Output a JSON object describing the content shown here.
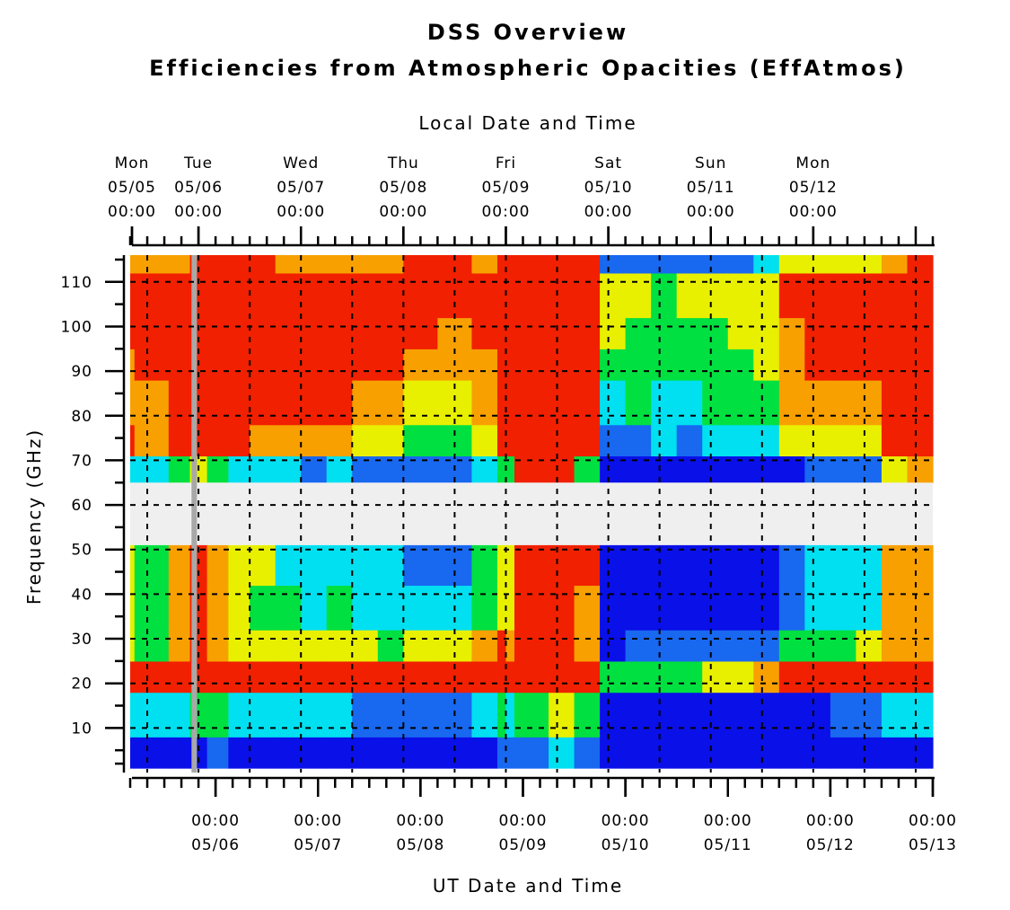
{
  "chart_data": {
    "type": "heatmap",
    "title": "DSS Overview",
    "subtitle": "Efficiencies from Atmospheric Opacities (EffAtmos)",
    "xlabel_top": "Local Date and Time",
    "xlabel_bottom": "UT Date and Time",
    "ylabel": "Frequency (GHz)",
    "ylim": [
      0,
      116
    ],
    "yticks": [
      10,
      20,
      30,
      40,
      50,
      60,
      70,
      80,
      90,
      100,
      110
    ],
    "local_time_ticks": [
      {
        "day": "Mon",
        "date": "05/05",
        "time": "00:00",
        "ut_hours": -8
      },
      {
        "day": "Tue",
        "date": "05/06",
        "time": "00:00",
        "ut_hours": 16
      },
      {
        "day": "Wed",
        "date": "05/07",
        "time": "00:00",
        "ut_hours": 40
      },
      {
        "day": "Thu",
        "date": "05/08",
        "time": "00:00",
        "ut_hours": 64
      },
      {
        "day": "Fri",
        "date": "05/09",
        "time": "00:00",
        "ut_hours": 88
      },
      {
        "day": "Sat",
        "date": "05/10",
        "time": "00:00",
        "ut_hours": 112
      },
      {
        "day": "Sun",
        "date": "05/11",
        "time": "00:00",
        "ut_hours": 136
      },
      {
        "day": "Mon",
        "date": "05/12",
        "time": "00:00",
        "ut_hours": 160
      }
    ],
    "ut_ticks": [
      {
        "time": "00:00",
        "date": "05/06",
        "ut_hours": 20
      },
      {
        "time": "00:00",
        "date": "05/07",
        "ut_hours": 44
      },
      {
        "time": "00:00",
        "date": "05/08",
        "ut_hours": 68
      },
      {
        "time": "00:00",
        "date": "05/09",
        "ut_hours": 92
      },
      {
        "time": "00:00",
        "date": "05/10",
        "ut_hours": 116
      },
      {
        "time": "00:00",
        "date": "05/11",
        "ut_hours": 140
      },
      {
        "time": "00:00",
        "date": "05/12",
        "ut_hours": 164
      },
      {
        "time": "00:00",
        "date": "05/13",
        "ut_hours": 188
      }
    ],
    "x_range_ut_hours": [
      0,
      188
    ],
    "excluded_band_ghz": [
      51,
      65
    ],
    "current_time_ut_hours": 15,
    "colormap": [
      "#0a10e8",
      "#1868f0",
      "#00e0f0",
      "#00e040",
      "#e8f000",
      "#f8a000",
      "#f02000"
    ],
    "efficiency_segments": [
      {
        "start": 0,
        "end": 1,
        "eff": [
          0.1,
          0.3,
          0.95,
          0.6,
          0.6,
          0.65,
          0.4,
          0.9,
          0.8,
          0.85,
          0.9,
          0.9,
          0.85
        ]
      },
      {
        "start": 1,
        "end": 9,
        "eff": [
          0.1,
          0.3,
          0.95,
          0.55,
          0.5,
          0.5,
          0.3,
          0.85,
          0.85,
          0.9,
          0.9,
          0.9,
          0.85
        ]
      },
      {
        "start": 9,
        "end": 14,
        "eff": [
          0.1,
          0.4,
          0.95,
          0.8,
          0.85,
          0.85,
          0.5,
          0.95,
          0.95,
          0.95,
          0.95,
          0.95,
          0.85
        ]
      },
      {
        "start": 14,
        "end": 18,
        "eff": [
          0.12,
          0.55,
          0.95,
          0.95,
          0.95,
          0.95,
          0.7,
          0.95,
          0.95,
          0.95,
          0.95,
          0.95,
          0.9
        ]
      },
      {
        "start": 18,
        "end": 20,
        "eff": [
          0.15,
          0.45,
          0.95,
          0.85,
          0.8,
          0.8,
          0.55,
          0.95,
          0.95,
          0.95,
          0.95,
          0.95,
          0.95
        ]
      },
      {
        "start": 20,
        "end": 23,
        "eff": [
          0.25,
          0.5,
          0.95,
          0.8,
          0.75,
          0.75,
          0.5,
          0.95,
          0.95,
          0.95,
          0.95,
          0.95,
          0.95
        ]
      },
      {
        "start": 23,
        "end": 28,
        "eff": [
          0.1,
          0.35,
          0.95,
          0.7,
          0.65,
          0.7,
          0.4,
          0.9,
          0.95,
          0.95,
          0.95,
          0.95,
          0.9
        ]
      },
      {
        "start": 28,
        "end": 34,
        "eff": [
          0.1,
          0.3,
          0.95,
          0.65,
          0.55,
          0.6,
          0.35,
          0.85,
          0.95,
          0.95,
          0.95,
          0.95,
          0.9
        ]
      },
      {
        "start": 34,
        "end": 40,
        "eff": [
          0.1,
          0.3,
          0.95,
          0.7,
          0.45,
          0.4,
          0.3,
          0.8,
          0.9,
          0.92,
          0.93,
          0.95,
          0.85
        ]
      },
      {
        "start": 40,
        "end": 46,
        "eff": [
          0.1,
          0.3,
          0.95,
          0.65,
          0.4,
          0.35,
          0.25,
          0.75,
          0.88,
          0.9,
          0.9,
          0.95,
          0.75
        ]
      },
      {
        "start": 46,
        "end": 52,
        "eff": [
          0.1,
          0.3,
          0.95,
          0.65,
          0.45,
          0.4,
          0.3,
          0.8,
          0.9,
          0.92,
          0.93,
          0.95,
          0.8
        ]
      },
      {
        "start": 52,
        "end": 58,
        "eff": [
          0.1,
          0.28,
          0.95,
          0.6,
          0.4,
          0.35,
          0.25,
          0.7,
          0.85,
          0.9,
          0.9,
          0.95,
          0.8
        ]
      },
      {
        "start": 58,
        "end": 64,
        "eff": [
          0.1,
          0.25,
          0.95,
          0.55,
          0.35,
          0.3,
          0.2,
          0.65,
          0.8,
          0.88,
          0.9,
          0.95,
          0.85
        ]
      },
      {
        "start": 64,
        "end": 72,
        "eff": [
          0.1,
          0.25,
          0.95,
          0.6,
          0.3,
          0.25,
          0.2,
          0.5,
          0.65,
          0.8,
          0.9,
          0.95,
          0.9
        ]
      },
      {
        "start": 72,
        "end": 80,
        "eff": [
          0.1,
          0.25,
          0.95,
          0.65,
          0.3,
          0.25,
          0.25,
          0.5,
          0.65,
          0.8,
          0.85,
          0.95,
          0.9
        ]
      },
      {
        "start": 80,
        "end": 86,
        "eff": [
          0.1,
          0.35,
          0.95,
          0.75,
          0.5,
          0.45,
          0.35,
          0.6,
          0.75,
          0.85,
          0.9,
          0.95,
          0.85
        ]
      },
      {
        "start": 86,
        "end": 88,
        "eff": [
          0.15,
          0.45,
          0.95,
          0.9,
          0.7,
          0.65,
          0.5,
          0.9,
          0.95,
          0.95,
          0.95,
          0.95,
          0.9
        ]
      },
      {
        "start": 88,
        "end": 90,
        "eff": [
          0.15,
          0.4,
          0.95,
          0.85,
          0.6,
          0.6,
          0.45,
          0.95,
          0.95,
          0.95,
          0.95,
          0.95,
          0.95
        ]
      },
      {
        "start": 90,
        "end": 98,
        "eff": [
          0.25,
          0.5,
          0.95,
          0.95,
          0.95,
          0.95,
          0.95,
          0.95,
          0.95,
          0.95,
          0.95,
          0.95,
          0.95
        ]
      },
      {
        "start": 98,
        "end": 104,
        "eff": [
          0.35,
          0.65,
          0.95,
          0.95,
          0.95,
          0.95,
          0.95,
          0.95,
          0.95,
          0.95,
          0.95,
          0.95,
          0.95
        ]
      },
      {
        "start": 104,
        "end": 110,
        "eff": [
          0.2,
          0.5,
          0.95,
          0.8,
          0.85,
          0.9,
          0.5,
          0.95,
          0.95,
          0.95,
          0.95,
          0.95,
          0.9
        ]
      },
      {
        "start": 110,
        "end": 116,
        "eff": [
          0.05,
          0.1,
          0.5,
          0.1,
          0.05,
          0.05,
          0.05,
          0.15,
          0.4,
          0.55,
          0.65,
          0.7,
          0.25
        ]
      },
      {
        "start": 116,
        "end": 122,
        "eff": [
          0.05,
          0.1,
          0.55,
          0.15,
          0.05,
          0.05,
          0.05,
          0.25,
          0.45,
          0.5,
          0.55,
          0.6,
          0.25
        ]
      },
      {
        "start": 122,
        "end": 128,
        "eff": [
          0.05,
          0.1,
          0.45,
          0.2,
          0.05,
          0.05,
          0.05,
          0.3,
          0.35,
          0.45,
          0.5,
          0.55,
          0.2
        ]
      },
      {
        "start": 128,
        "end": 134,
        "eff": [
          0.05,
          0.1,
          0.55,
          0.15,
          0.05,
          0.05,
          0.05,
          0.25,
          0.4,
          0.5,
          0.55,
          0.6,
          0.25
        ]
      },
      {
        "start": 134,
        "end": 140,
        "eff": [
          0.05,
          0.1,
          0.6,
          0.2,
          0.05,
          0.05,
          0.05,
          0.3,
          0.45,
          0.5,
          0.55,
          0.6,
          0.25
        ]
      },
      {
        "start": 140,
        "end": 146,
        "eff": [
          0.05,
          0.1,
          0.65,
          0.25,
          0.05,
          0.05,
          0.05,
          0.35,
          0.5,
          0.55,
          0.6,
          0.65,
          0.25
        ]
      },
      {
        "start": 146,
        "end": 152,
        "eff": [
          0.05,
          0.1,
          0.85,
          0.25,
          0.1,
          0.1,
          0.1,
          0.35,
          0.5,
          0.6,
          0.65,
          0.7,
          0.35
        ]
      },
      {
        "start": 152,
        "end": 158,
        "eff": [
          0.05,
          0.1,
          0.95,
          0.45,
          0.25,
          0.2,
          0.1,
          0.6,
          0.75,
          0.85,
          0.85,
          0.9,
          0.6
        ]
      },
      {
        "start": 158,
        "end": 164,
        "eff": [
          0.05,
          0.1,
          0.95,
          0.55,
          0.35,
          0.3,
          0.15,
          0.65,
          0.8,
          0.9,
          0.9,
          0.92,
          0.65
        ]
      },
      {
        "start": 164,
        "end": 170,
        "eff": [
          0.05,
          0.15,
          0.95,
          0.55,
          0.35,
          0.3,
          0.2,
          0.65,
          0.82,
          0.9,
          0.9,
          0.92,
          0.7
        ]
      },
      {
        "start": 170,
        "end": 176,
        "eff": [
          0.05,
          0.2,
          0.95,
          0.6,
          0.4,
          0.35,
          0.2,
          0.65,
          0.8,
          0.88,
          0.9,
          0.92,
          0.7
        ]
      },
      {
        "start": 176,
        "end": 182,
        "eff": [
          0.05,
          0.3,
          0.95,
          0.8,
          0.8,
          0.8,
          0.7,
          0.9,
          0.92,
          0.93,
          0.95,
          0.95,
          0.8
        ]
      },
      {
        "start": 182,
        "end": 188,
        "eff": [
          0.05,
          0.35,
          0.95,
          0.85,
          0.85,
          0.8,
          0.75,
          0.95,
          0.95,
          0.95,
          0.95,
          0.95,
          0.9
        ]
      }
    ],
    "frequency_bands_ghz": [
      [
        1,
        8
      ],
      [
        8,
        18
      ],
      [
        18,
        25
      ],
      [
        25,
        32
      ],
      [
        32,
        42
      ],
      [
        42,
        51
      ],
      [
        65,
        71
      ],
      [
        71,
        78
      ],
      [
        78,
        88
      ],
      [
        88,
        95
      ],
      [
        95,
        102
      ],
      [
        102,
        112
      ],
      [
        112,
        116
      ]
    ]
  }
}
